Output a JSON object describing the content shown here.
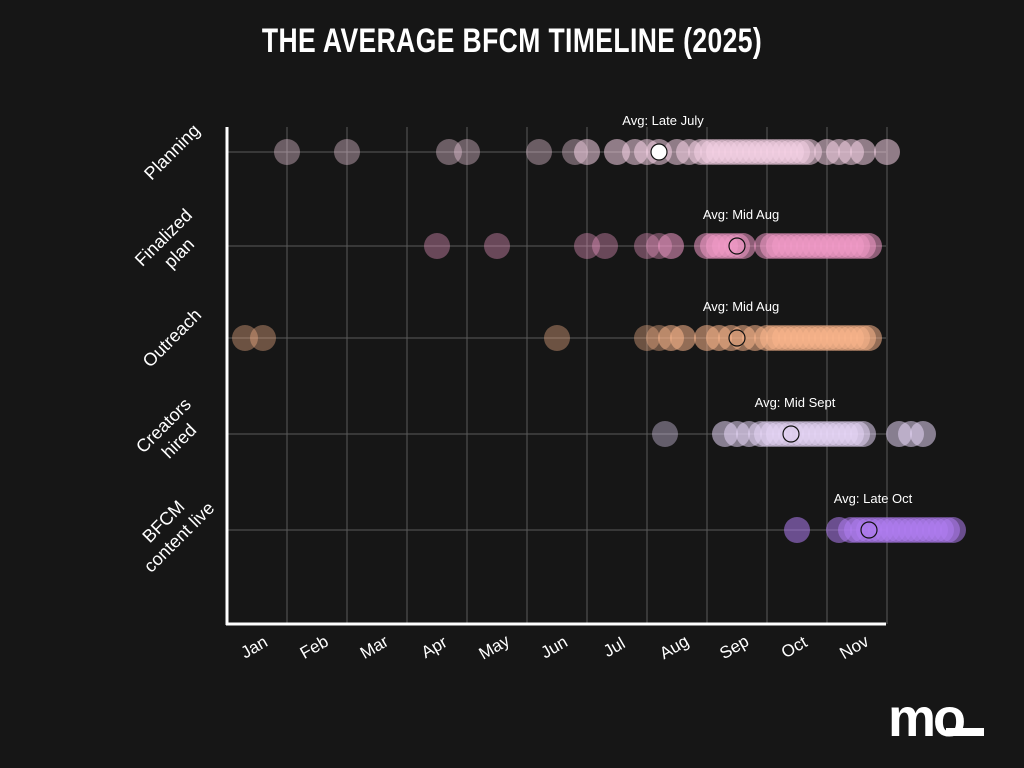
{
  "page": {
    "title": "THE AVERAGE BFCM TIMELINE (2025)"
  },
  "brand": {
    "logo_text": "mo",
    "logo_color": "#ffffff"
  },
  "chart_data": {
    "type": "scatter",
    "title": "THE AVERAGE BFCM TIMELINE (2025)",
    "xlabel": "",
    "ylabel": "",
    "x_ticks": [
      "Jan",
      "Feb",
      "Mar",
      "Apr",
      "May",
      "Jun",
      "Jul",
      "Aug",
      "Sep",
      "Oct",
      "Nov"
    ],
    "grid": true,
    "categories": [
      "Planning",
      "Finalized plan",
      "Outreach",
      "Creators hired",
      "BFCM content live"
    ],
    "series": [
      {
        "category": "Planning",
        "color": "#f6d2e6",
        "points": [
          1.0,
          2.0,
          3.7,
          4.0,
          5.2,
          5.8,
          6.0,
          6.5,
          6.8,
          7.0,
          7.2,
          7.5,
          7.7,
          7.9,
          8.0,
          8.1,
          8.2,
          8.3,
          8.4,
          8.5,
          8.6,
          8.7,
          8.8,
          8.9,
          9.0,
          9.1,
          9.2,
          9.3,
          9.4,
          9.5,
          9.6,
          9.7,
          10.0,
          10.2,
          10.4,
          10.6,
          11.0
        ],
        "avg": 7.2,
        "avg_label": "Avg: Late July"
      },
      {
        "category": "Finalized plan",
        "color": "#f39bc9",
        "points": [
          3.5,
          4.5,
          6.0,
          6.3,
          7.0,
          7.2,
          7.4,
          8.0,
          8.1,
          8.2,
          8.3,
          8.4,
          8.5,
          8.6,
          9.0,
          9.1,
          9.2,
          9.3,
          9.4,
          9.5,
          9.6,
          9.7,
          9.8,
          9.9,
          10.0,
          10.1,
          10.2,
          10.3,
          10.4,
          10.5,
          10.6,
          10.7
        ],
        "avg": 8.5,
        "avg_label": "Avg: Mid Aug"
      },
      {
        "category": "Outreach",
        "color": "#fbb68c",
        "points": [
          0.3,
          0.6,
          5.5,
          7.0,
          7.2,
          7.4,
          7.6,
          8.0,
          8.2,
          8.4,
          8.6,
          8.8,
          9.0,
          9.1,
          9.2,
          9.3,
          9.4,
          9.5,
          9.6,
          9.7,
          9.8,
          9.9,
          10.0,
          10.1,
          10.2,
          10.3,
          10.4,
          10.5,
          10.6,
          10.7
        ],
        "avg": 8.5,
        "avg_label": "Avg: Mid Aug"
      },
      {
        "category": "Creators hired",
        "color": "#e6d6f6",
        "points": [
          7.3,
          8.3,
          8.5,
          8.7,
          8.9,
          9.0,
          9.1,
          9.2,
          9.3,
          9.4,
          9.5,
          9.6,
          9.7,
          9.8,
          9.9,
          10.0,
          10.1,
          10.2,
          10.3,
          10.4,
          10.5,
          10.6,
          11.2,
          11.4,
          11.6
        ],
        "avg": 9.4,
        "avg_label": "Avg: Mid Sept"
      },
      {
        "category": "BFCM content live",
        "color": "#b07ef2",
        "points": [
          9.5,
          10.2,
          10.4,
          10.5,
          10.6,
          10.7,
          10.8,
          10.9,
          11.0,
          11.1,
          11.2,
          11.3,
          11.4,
          11.5,
          11.6,
          11.7,
          11.8,
          11.9,
          12.0,
          12.1
        ],
        "avg": 10.7,
        "avg_label": "Avg: Late Oct"
      }
    ]
  }
}
